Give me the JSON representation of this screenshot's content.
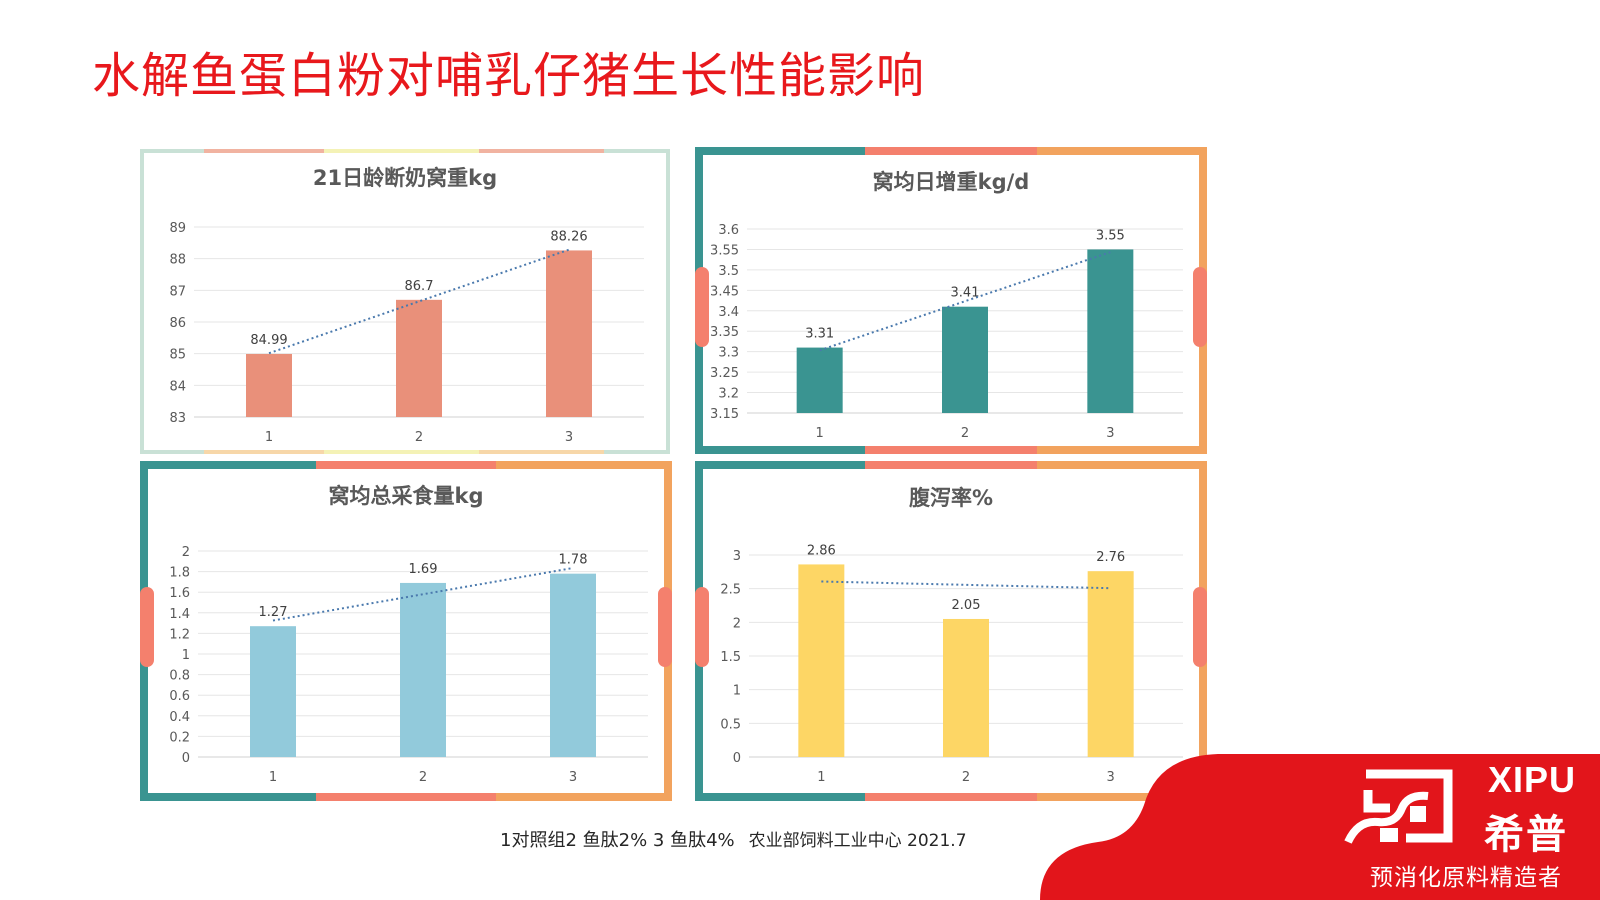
{
  "slide": {
    "title": "水解鱼蛋白粉对哺乳仔猪生长性能影响",
    "footnote": "1对照组2 鱼肽2% 3 鱼肽4%",
    "source": "农业部饲料工业中心 2021.7"
  },
  "brand": {
    "name": "XIPU",
    "name_cn": "希普",
    "tagline": "预消化原料精造者",
    "color": "#e2151b"
  },
  "chart_data": [
    {
      "type": "bar",
      "title": "21日龄断奶窝重kg",
      "categories": [
        "1",
        "2",
        "3"
      ],
      "values": [
        84.99,
        86.7,
        88.26
      ],
      "data_labels": [
        "84.99",
        "86.7",
        "88.26"
      ],
      "ylim": [
        83,
        89
      ],
      "yticks": [
        "83",
        "84",
        "85",
        "86",
        "87",
        "88",
        "89"
      ],
      "trendline": "linear",
      "grid": true,
      "color": "#e9907a",
      "xlabel": "",
      "ylabel": ""
    },
    {
      "type": "bar",
      "title": "窝均日增重kg/d",
      "categories": [
        "1",
        "2",
        "3"
      ],
      "values": [
        3.31,
        3.41,
        3.55
      ],
      "data_labels": [
        "3.31",
        "3.41",
        "3.55"
      ],
      "ylim": [
        3.15,
        3.6
      ],
      "yticks": [
        "3.15",
        "3.2",
        "3.25",
        "3.3",
        "3.35",
        "3.4",
        "3.45",
        "3.5",
        "3.55",
        "3.6"
      ],
      "trendline": "linear",
      "grid": true,
      "color": "#3a9491",
      "xlabel": "",
      "ylabel": ""
    },
    {
      "type": "bar",
      "title": "窝均总采食量kg",
      "categories": [
        "1",
        "2",
        "3"
      ],
      "values": [
        1.27,
        1.69,
        1.78
      ],
      "data_labels": [
        "1.27",
        "1.69",
        "1.78"
      ],
      "ylim": [
        0,
        2
      ],
      "yticks": [
        "0",
        "0.2",
        "0.4",
        "0.6",
        "0.8",
        "1",
        "1.2",
        "1.4",
        "1.6",
        "1.8",
        "2"
      ],
      "trendline": "linear",
      "grid": true,
      "color": "#92cadb",
      "xlabel": "",
      "ylabel": ""
    },
    {
      "type": "bar",
      "title": "腹泻率%",
      "categories": [
        "1",
        "2",
        "3"
      ],
      "values": [
        2.86,
        2.05,
        2.76
      ],
      "data_labels": [
        "2.86",
        "2.05",
        "2.76"
      ],
      "ylim": [
        0,
        3
      ],
      "yticks": [
        "0",
        "0.5",
        "1",
        "1.5",
        "2",
        "2.5",
        "3"
      ],
      "trendline": "linear",
      "grid": true,
      "color": "#fdd665",
      "xlabel": "",
      "ylabel": ""
    }
  ]
}
